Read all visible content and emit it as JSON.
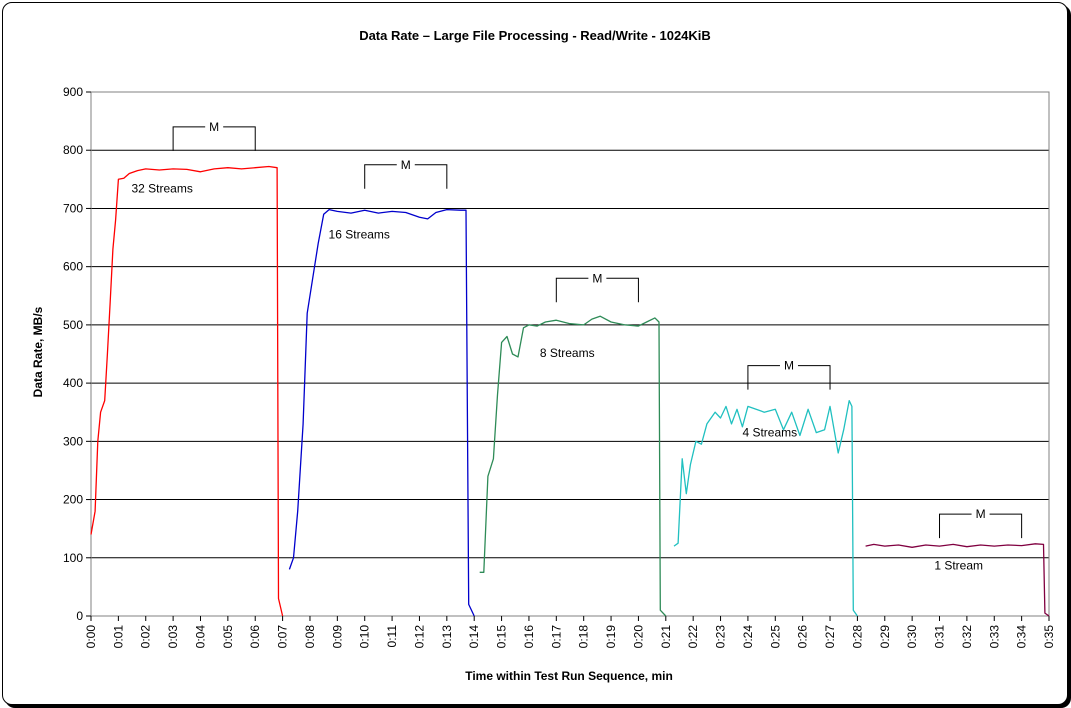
{
  "chart_data": {
    "type": "line",
    "title": "Data Rate – Large File Processing - Read/Write - 1024KiB",
    "xlabel": "Time within Test Run Sequence, min",
    "ylabel": "Data Rate, MB/s",
    "xlim": [
      0,
      35
    ],
    "ylim": [
      0,
      900
    ],
    "y_ticks": [
      0,
      100,
      200,
      300,
      400,
      500,
      600,
      700,
      800,
      900
    ],
    "x_ticks": [
      "0:00",
      "0:01",
      "0:02",
      "0:03",
      "0:04",
      "0:05",
      "0:06",
      "0:07",
      "0:08",
      "0:09",
      "0:10",
      "0:11",
      "0:12",
      "0:13",
      "0:14",
      "0:15",
      "0:16",
      "0:17",
      "0:18",
      "0:19",
      "0:20",
      "0:21",
      "0:22",
      "0:23",
      "0:24",
      "0:25",
      "0:26",
      "0:27",
      "0:28",
      "0:29",
      "0:30",
      "0:31",
      "0:32",
      "0:33",
      "0:34",
      "0:35"
    ],
    "grid": true,
    "series": [
      {
        "name": "32 Streams",
        "color": "#ff0000",
        "label_at": [
          2.6,
          727
        ],
        "points": [
          [
            0,
            140
          ],
          [
            0.15,
            180
          ],
          [
            0.25,
            300
          ],
          [
            0.35,
            350
          ],
          [
            0.5,
            370
          ],
          [
            0.6,
            450
          ],
          [
            0.7,
            540
          ],
          [
            0.8,
            630
          ],
          [
            0.9,
            680
          ],
          [
            1.0,
            750
          ],
          [
            1.2,
            752
          ],
          [
            1.4,
            760
          ],
          [
            1.7,
            765
          ],
          [
            2,
            768
          ],
          [
            2.5,
            766
          ],
          [
            3,
            768
          ],
          [
            3.5,
            767
          ],
          [
            4,
            763
          ],
          [
            4.5,
            768
          ],
          [
            5,
            770
          ],
          [
            5.5,
            768
          ],
          [
            6,
            770
          ],
          [
            6.5,
            772
          ],
          [
            6.8,
            770
          ],
          [
            6.85,
            30
          ],
          [
            7.0,
            0
          ]
        ]
      },
      {
        "name": "16 Streams",
        "color": "#0000cc",
        "label_at": [
          9.8,
          648
        ],
        "points": [
          [
            7.25,
            80
          ],
          [
            7.4,
            100
          ],
          [
            7.55,
            180
          ],
          [
            7.75,
            330
          ],
          [
            7.9,
            520
          ],
          [
            8.1,
            580
          ],
          [
            8.3,
            640
          ],
          [
            8.5,
            690
          ],
          [
            8.7,
            698
          ],
          [
            9,
            695
          ],
          [
            9.5,
            692
          ],
          [
            10,
            697
          ],
          [
            10.5,
            692
          ],
          [
            11,
            695
          ],
          [
            11.5,
            693
          ],
          [
            12,
            685
          ],
          [
            12.3,
            682
          ],
          [
            12.6,
            693
          ],
          [
            13,
            698
          ],
          [
            13.5,
            697
          ],
          [
            13.7,
            697
          ],
          [
            13.8,
            20
          ],
          [
            14.0,
            0
          ]
        ]
      },
      {
        "name": "8 Streams",
        "color": "#2e8b57",
        "label_at": [
          17.4,
          445
        ],
        "points": [
          [
            14.2,
            75
          ],
          [
            14.35,
            75
          ],
          [
            14.5,
            240
          ],
          [
            14.7,
            270
          ],
          [
            14.85,
            380
          ],
          [
            15.0,
            470
          ],
          [
            15.2,
            480
          ],
          [
            15.4,
            450
          ],
          [
            15.6,
            445
          ],
          [
            15.8,
            495
          ],
          [
            16,
            500
          ],
          [
            16.3,
            498
          ],
          [
            16.6,
            505
          ],
          [
            17,
            508
          ],
          [
            17.5,
            502
          ],
          [
            18,
            500
          ],
          [
            18.3,
            510
          ],
          [
            18.6,
            515
          ],
          [
            19,
            505
          ],
          [
            19.5,
            500
          ],
          [
            20,
            498
          ],
          [
            20.3,
            505
          ],
          [
            20.6,
            512
          ],
          [
            20.75,
            505
          ],
          [
            20.8,
            10
          ],
          [
            21.0,
            0
          ]
        ]
      },
      {
        "name": "4 Streams",
        "color": "#20c0c0",
        "label_at": [
          24.8,
          308
        ],
        "points": [
          [
            21.3,
            120
          ],
          [
            21.45,
            125
          ],
          [
            21.6,
            270
          ],
          [
            21.75,
            210
          ],
          [
            21.9,
            260
          ],
          [
            22.1,
            300
          ],
          [
            22.3,
            295
          ],
          [
            22.5,
            330
          ],
          [
            22.8,
            350
          ],
          [
            23.0,
            340
          ],
          [
            23.2,
            360
          ],
          [
            23.4,
            330
          ],
          [
            23.6,
            355
          ],
          [
            23.8,
            325
          ],
          [
            24.0,
            360
          ],
          [
            24.3,
            355
          ],
          [
            24.6,
            350
          ],
          [
            25.0,
            355
          ],
          [
            25.3,
            320
          ],
          [
            25.6,
            350
          ],
          [
            25.9,
            310
          ],
          [
            26.2,
            355
          ],
          [
            26.5,
            315
          ],
          [
            26.8,
            320
          ],
          [
            27.0,
            360
          ],
          [
            27.3,
            280
          ],
          [
            27.5,
            320
          ],
          [
            27.7,
            370
          ],
          [
            27.8,
            360
          ],
          [
            27.85,
            10
          ],
          [
            28.0,
            0
          ]
        ]
      },
      {
        "name": "1 Stream",
        "color": "#800040",
        "label_at": [
          31.7,
          80
        ],
        "points": [
          [
            28.3,
            120
          ],
          [
            28.6,
            123
          ],
          [
            29,
            120
          ],
          [
            29.5,
            122
          ],
          [
            30,
            118
          ],
          [
            30.5,
            122
          ],
          [
            31,
            120
          ],
          [
            31.5,
            123
          ],
          [
            32,
            119
          ],
          [
            32.5,
            122
          ],
          [
            33,
            120
          ],
          [
            33.5,
            122
          ],
          [
            34,
            121
          ],
          [
            34.5,
            124
          ],
          [
            34.8,
            123
          ],
          [
            34.85,
            5
          ],
          [
            35.0,
            0
          ]
        ]
      }
    ],
    "annotations": [
      {
        "text": "M",
        "x1": 3,
        "x2": 6,
        "y": 840
      },
      {
        "text": "M",
        "x1": 10,
        "x2": 13,
        "y": 775
      },
      {
        "text": "M",
        "x1": 17,
        "x2": 20,
        "y": 580
      },
      {
        "text": "M",
        "x1": 24,
        "x2": 27,
        "y": 430
      },
      {
        "text": "M",
        "x1": 31,
        "x2": 34,
        "y": 175
      }
    ]
  }
}
